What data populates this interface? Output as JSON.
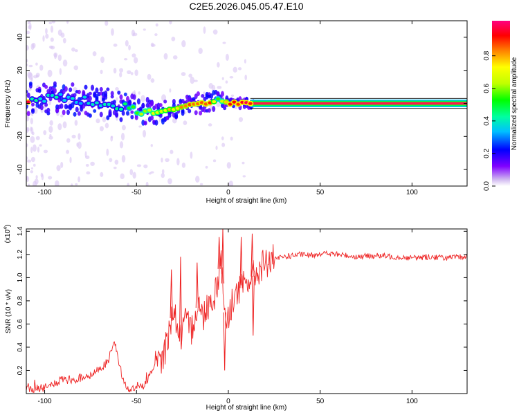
{
  "title": "C2E5.2026.045.05.47.E10",
  "chart_data": [
    {
      "type": "heatmap",
      "name": "spectrogram",
      "xlabel": "Height of straight line (km)",
      "ylabel": "Frequency (Hz)",
      "xlim": [
        -110,
        130
      ],
      "ylim": [
        -50,
        50
      ],
      "xticks": [
        -100,
        -50,
        0,
        50,
        100
      ],
      "yticks": [
        -40,
        -20,
        0,
        20,
        40
      ],
      "colorbar": {
        "label": "Normalized spectral amplitude",
        "range": [
          0,
          1
        ],
        "ticks": [
          "0.0",
          "0.2",
          "0.4",
          "0.6",
          "0.8"
        ],
        "colormap": [
          "#ffffff",
          "#d0b8f0",
          "#8000ff",
          "#0000ff",
          "#00c0ff",
          "#00ffa0",
          "#00ff00",
          "#c0ff00",
          "#ffff00",
          "#ff8000",
          "#ff0000",
          "#ff0080"
        ]
      },
      "signal_track": [
        {
          "x": -108,
          "freq": 3,
          "amp": 0.45
        },
        {
          "x": -100,
          "freq": 3,
          "amp": 0.42
        },
        {
          "x": -90,
          "freq": 3,
          "amp": 0.4
        },
        {
          "x": -80,
          "freq": 2,
          "amp": 0.38
        },
        {
          "x": -70,
          "freq": 1,
          "amp": 0.4
        },
        {
          "x": -60,
          "freq": -2,
          "amp": 0.45
        },
        {
          "x": -50,
          "freq": -4,
          "amp": 0.62
        },
        {
          "x": -40,
          "freq": -6,
          "amp": 0.7
        },
        {
          "x": -30,
          "freq": -4,
          "amp": 0.78
        },
        {
          "x": -20,
          "freq": 0,
          "amp": 0.88
        },
        {
          "x": -10,
          "freq": 0,
          "amp": 0.92
        },
        {
          "x": -5,
          "freq": 3,
          "amp": 0.55
        },
        {
          "x": 0,
          "freq": 0,
          "amp": 0.92
        },
        {
          "x": 10,
          "freq": 0,
          "amp": 0.95
        },
        {
          "x": 20,
          "freq": 0,
          "amp": 0.98
        },
        {
          "x": 50,
          "freq": 0,
          "amp": 0.98
        },
        {
          "x": 100,
          "freq": 0,
          "amp": 0.98
        },
        {
          "x": 130,
          "freq": 0,
          "amp": 0.98
        }
      ]
    },
    {
      "type": "line",
      "name": "snr",
      "xlabel": "Height of straight line (km)",
      "ylabel": "SNR (10 * v/v)",
      "y_scale_label": "(x10",
      "y_scale_exponent": "4",
      "xlim": [
        -110,
        130
      ],
      "ylim": [
        0,
        1.42
      ],
      "xticks": [
        -100,
        -50,
        0,
        50,
        100
      ],
      "yticks": [
        "0.2",
        "0.4",
        "0.6",
        "0.8",
        "1.0",
        "1.2",
        "1.4"
      ],
      "series": [
        {
          "name": "SNR",
          "color": "#ee2222",
          "x": [
            -110,
            -100,
            -95,
            -90,
            -85,
            -80,
            -75,
            -70,
            -65,
            -62,
            -60,
            -57,
            -55,
            -50,
            -45,
            -42,
            -38,
            -35,
            -32,
            -30,
            -28,
            -26,
            -24,
            -22,
            -20,
            -18,
            -16,
            -14,
            -12,
            -10,
            -8,
            -6,
            -4,
            -2,
            0,
            2,
            4,
            6,
            8,
            10,
            12,
            14,
            16,
            18,
            20,
            22,
            25,
            28,
            30,
            35,
            40,
            45,
            50,
            60,
            70,
            80,
            90,
            100,
            110,
            120,
            130
          ],
          "y": [
            0.03,
            0.05,
            0.08,
            0.12,
            0.1,
            0.14,
            0.15,
            0.22,
            0.28,
            0.45,
            0.3,
            0.1,
            0.04,
            0.04,
            0.08,
            0.2,
            0.25,
            0.35,
            0.55,
            0.75,
            0.6,
            0.45,
            0.62,
            0.58,
            0.55,
            0.7,
            0.78,
            0.65,
            0.75,
            0.8,
            0.82,
            0.95,
            1.2,
            0.7,
            0.62,
            0.8,
            0.85,
            0.9,
            0.92,
            0.95,
            1.0,
            1.02,
            1.05,
            1.1,
            1.12,
            1.14,
            1.15,
            1.17,
            1.18,
            1.19,
            1.2,
            1.19,
            1.21,
            1.2,
            1.18,
            1.19,
            1.18,
            1.17,
            1.18,
            1.17,
            1.18
          ]
        }
      ],
      "spikes": [
        {
          "x": -31,
          "y": 1.07
        },
        {
          "x": -26,
          "y": 1.18
        },
        {
          "x": -17,
          "y": 1.13
        },
        {
          "x": -5,
          "y": 1.35
        },
        {
          "x": -3,
          "y": 1.42
        },
        {
          "x": -2,
          "y": 0.2
        },
        {
          "x": 7,
          "y": 1.35
        },
        {
          "x": 13,
          "y": 1.38
        },
        {
          "x": 13.5,
          "y": 0.5
        }
      ]
    }
  ]
}
